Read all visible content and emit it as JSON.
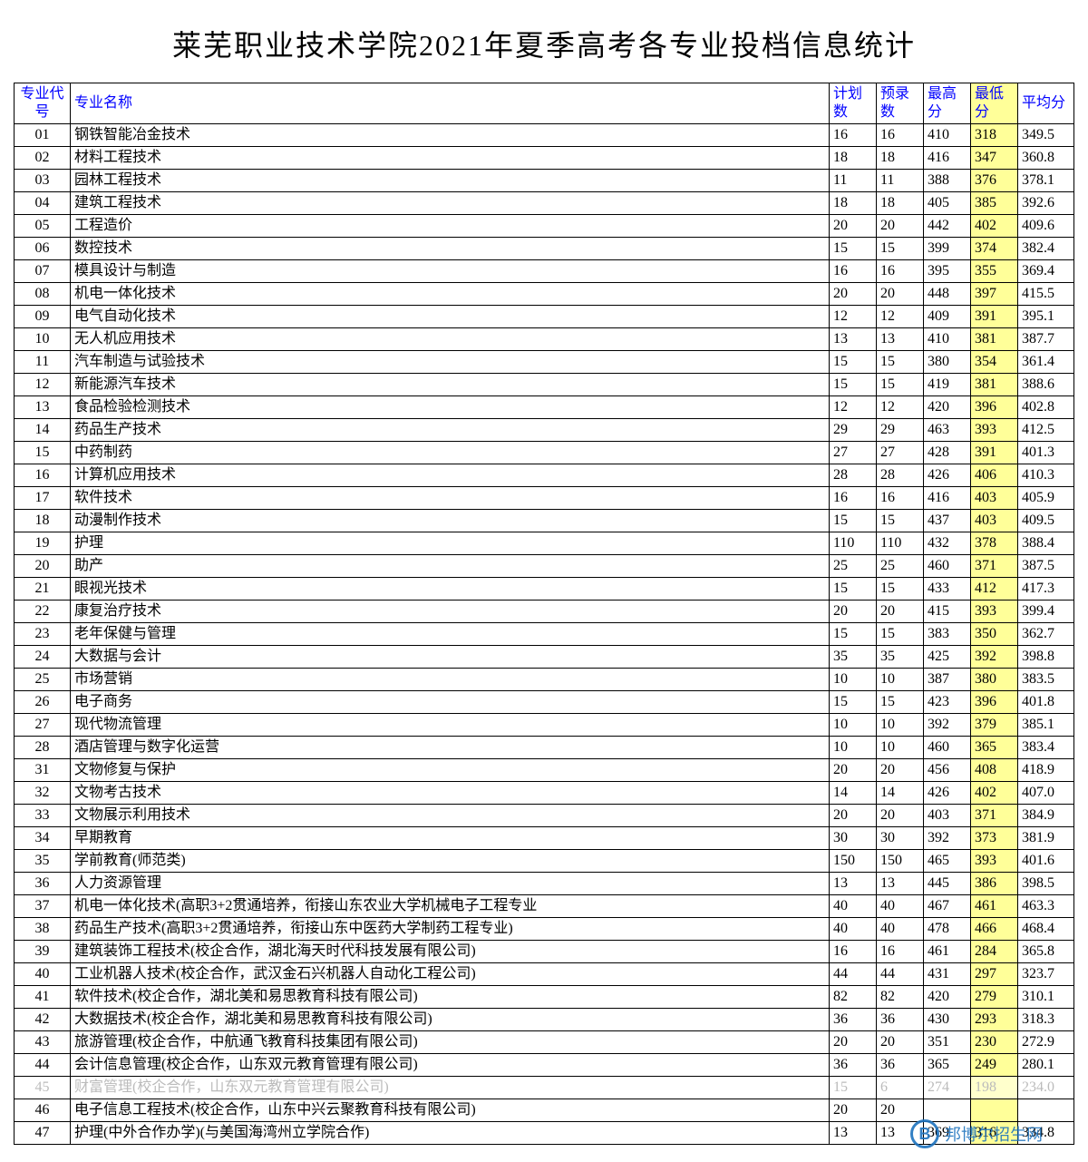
{
  "title": "莱芜职业技术学院2021年夏季高考各专业投档信息统计",
  "headers": {
    "code": "专业代号",
    "name": "专业名称",
    "plan": "计划数",
    "pre": "预录数",
    "max": "最高分",
    "min": "最低分",
    "avg": "平均分"
  },
  "colors": {
    "header_text": "#0000ff",
    "border": "#000000",
    "highlight_bg": "#ffff99",
    "background": "#ffffff",
    "text": "#000000",
    "watermark": "#1e73be"
  },
  "watermark": {
    "letter": "B",
    "text": "邦博尔招生网"
  },
  "rows": [
    {
      "code": "01",
      "name": "钢铁智能冶金技术",
      "plan": "16",
      "pre": "16",
      "max": "410",
      "min": "318",
      "avg": "349.5"
    },
    {
      "code": "02",
      "name": "材料工程技术",
      "plan": "18",
      "pre": "18",
      "max": "416",
      "min": "347",
      "avg": "360.8"
    },
    {
      "code": "03",
      "name": "园林工程技术",
      "plan": "11",
      "pre": "11",
      "max": "388",
      "min": "376",
      "avg": "378.1"
    },
    {
      "code": "04",
      "name": "建筑工程技术",
      "plan": "18",
      "pre": "18",
      "max": "405",
      "min": "385",
      "avg": "392.6"
    },
    {
      "code": "05",
      "name": "工程造价",
      "plan": "20",
      "pre": "20",
      "max": "442",
      "min": "402",
      "avg": "409.6"
    },
    {
      "code": "06",
      "name": "数控技术",
      "plan": "15",
      "pre": "15",
      "max": "399",
      "min": "374",
      "avg": "382.4"
    },
    {
      "code": "07",
      "name": "模具设计与制造",
      "plan": "16",
      "pre": "16",
      "max": "395",
      "min": "355",
      "avg": "369.4"
    },
    {
      "code": "08",
      "name": "机电一体化技术",
      "plan": "20",
      "pre": "20",
      "max": "448",
      "min": "397",
      "avg": "415.5"
    },
    {
      "code": "09",
      "name": "电气自动化技术",
      "plan": "12",
      "pre": "12",
      "max": "409",
      "min": "391",
      "avg": "395.1"
    },
    {
      "code": "10",
      "name": "无人机应用技术",
      "plan": "13",
      "pre": "13",
      "max": "410",
      "min": "381",
      "avg": "387.7"
    },
    {
      "code": "11",
      "name": "汽车制造与试验技术",
      "plan": "15",
      "pre": "15",
      "max": "380",
      "min": "354",
      "avg": "361.4"
    },
    {
      "code": "12",
      "name": "新能源汽车技术",
      "plan": "15",
      "pre": "15",
      "max": "419",
      "min": "381",
      "avg": "388.6"
    },
    {
      "code": "13",
      "name": "食品检验检测技术",
      "plan": "12",
      "pre": "12",
      "max": "420",
      "min": "396",
      "avg": "402.8"
    },
    {
      "code": "14",
      "name": "药品生产技术",
      "plan": "29",
      "pre": "29",
      "max": "463",
      "min": "393",
      "avg": "412.5"
    },
    {
      "code": "15",
      "name": "中药制药",
      "plan": "27",
      "pre": "27",
      "max": "428",
      "min": "391",
      "avg": "401.3"
    },
    {
      "code": "16",
      "name": "计算机应用技术",
      "plan": "28",
      "pre": "28",
      "max": "426",
      "min": "406",
      "avg": "410.3"
    },
    {
      "code": "17",
      "name": "软件技术",
      "plan": "16",
      "pre": "16",
      "max": "416",
      "min": "403",
      "avg": "405.9"
    },
    {
      "code": "18",
      "name": "动漫制作技术",
      "plan": "15",
      "pre": "15",
      "max": "437",
      "min": "403",
      "avg": "409.5"
    },
    {
      "code": "19",
      "name": "护理",
      "plan": "110",
      "pre": "110",
      "max": "432",
      "min": "378",
      "avg": "388.4"
    },
    {
      "code": "20",
      "name": "助产",
      "plan": "25",
      "pre": "25",
      "max": "460",
      "min": "371",
      "avg": "387.5"
    },
    {
      "code": "21",
      "name": "眼视光技术",
      "plan": "15",
      "pre": "15",
      "max": "433",
      "min": "412",
      "avg": "417.3"
    },
    {
      "code": "22",
      "name": "康复治疗技术",
      "plan": "20",
      "pre": "20",
      "max": "415",
      "min": "393",
      "avg": "399.4"
    },
    {
      "code": "23",
      "name": "老年保健与管理",
      "plan": "15",
      "pre": "15",
      "max": "383",
      "min": "350",
      "avg": "362.7"
    },
    {
      "code": "24",
      "name": "大数据与会计",
      "plan": "35",
      "pre": "35",
      "max": "425",
      "min": "392",
      "avg": "398.8"
    },
    {
      "code": "25",
      "name": "市场营销",
      "plan": "10",
      "pre": "10",
      "max": "387",
      "min": "380",
      "avg": "383.5"
    },
    {
      "code": "26",
      "name": "电子商务",
      "plan": "15",
      "pre": "15",
      "max": "423",
      "min": "396",
      "avg": "401.8"
    },
    {
      "code": "27",
      "name": "现代物流管理",
      "plan": "10",
      "pre": "10",
      "max": "392",
      "min": "379",
      "avg": "385.1"
    },
    {
      "code": "28",
      "name": "酒店管理与数字化运营",
      "plan": "10",
      "pre": "10",
      "max": "460",
      "min": "365",
      "avg": "383.4"
    },
    {
      "code": "31",
      "name": "文物修复与保护",
      "plan": "20",
      "pre": "20",
      "max": "456",
      "min": "408",
      "avg": "418.9"
    },
    {
      "code": "32",
      "name": "文物考古技术",
      "plan": "14",
      "pre": "14",
      "max": "426",
      "min": "402",
      "avg": "407.0"
    },
    {
      "code": "33",
      "name": "文物展示利用技术",
      "plan": "20",
      "pre": "20",
      "max": "403",
      "min": "371",
      "avg": "384.9"
    },
    {
      "code": "34",
      "name": "早期教育",
      "plan": "30",
      "pre": "30",
      "max": "392",
      "min": "373",
      "avg": "381.9"
    },
    {
      "code": "35",
      "name": "学前教育(师范类)",
      "plan": "150",
      "pre": "150",
      "max": "465",
      "min": "393",
      "avg": "401.6"
    },
    {
      "code": "36",
      "name": "人力资源管理",
      "plan": "13",
      "pre": "13",
      "max": "445",
      "min": "386",
      "avg": "398.5"
    },
    {
      "code": "37",
      "name": "机电一体化技术(高职3+2贯通培养，衔接山东农业大学机械电子工程专业",
      "plan": "40",
      "pre": "40",
      "max": "467",
      "min": "461",
      "avg": "463.3"
    },
    {
      "code": "38",
      "name": "药品生产技术(高职3+2贯通培养，衔接山东中医药大学制药工程专业)",
      "plan": "40",
      "pre": "40",
      "max": "478",
      "min": "466",
      "avg": "468.4"
    },
    {
      "code": "39",
      "name": "建筑装饰工程技术(校企合作，湖北海天时代科技发展有限公司)",
      "plan": "16",
      "pre": "16",
      "max": "461",
      "min": "284",
      "avg": "365.8"
    },
    {
      "code": "40",
      "name": "工业机器人技术(校企合作，武汉金石兴机器人自动化工程公司)",
      "plan": "44",
      "pre": "44",
      "max": "431",
      "min": "297",
      "avg": "323.7"
    },
    {
      "code": "41",
      "name": "软件技术(校企合作，湖北美和易思教育科技有限公司)",
      "plan": "82",
      "pre": "82",
      "max": "420",
      "min": "279",
      "avg": "310.1"
    },
    {
      "code": "42",
      "name": "大数据技术(校企合作，湖北美和易思教育科技有限公司)",
      "plan": "36",
      "pre": "36",
      "max": "430",
      "min": "293",
      "avg": "318.3"
    },
    {
      "code": "43",
      "name": "旅游管理(校企合作，中航通飞教育科技集团有限公司)",
      "plan": "20",
      "pre": "20",
      "max": "351",
      "min": "230",
      "avg": "272.9"
    },
    {
      "code": "44",
      "name": "会计信息管理(校企合作，山东双元教育管理有限公司)",
      "plan": "36",
      "pre": "36",
      "max": "365",
      "min": "249",
      "avg": "280.1"
    },
    {
      "code": "45",
      "name": "财富管理(校企合作，山东双元教育管理有限公司)",
      "plan": "15",
      "pre": "6",
      "max": "274",
      "min": "198",
      "avg": "234.0",
      "faded": true
    },
    {
      "code": "46",
      "name": "电子信息工程技术(校企合作，山东中兴云聚教育科技有限公司)",
      "plan": "20",
      "pre": "20",
      "max": "",
      "min": "",
      "avg": ""
    },
    {
      "code": "47",
      "name": "护理(中外合作办学)(与美国海湾州立学院合作)",
      "plan": "13",
      "pre": "13",
      "max": "369",
      "min": "316",
      "avg": "334.8"
    }
  ]
}
